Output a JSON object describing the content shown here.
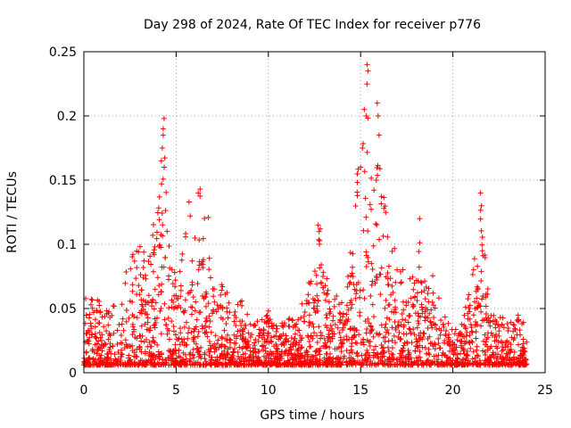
{
  "chart_data": {
    "type": "scatter",
    "title": "Day 298 of 2024, Rate Of TEC Index for receiver p776",
    "xlabel": "GPS time / hours",
    "ylabel": "ROTI / TECUs",
    "xlim": [
      0,
      25
    ],
    "ylim": [
      0,
      0.25
    ],
    "xticks": [
      0,
      5,
      10,
      15,
      20,
      25
    ],
    "yticks": [
      0,
      0.05,
      0.1,
      0.15,
      0.2,
      0.25
    ],
    "xtick_labels": [
      "0",
      "5",
      "10",
      "15",
      "20",
      "25"
    ],
    "ytick_labels": [
      "0",
      "0.05",
      "0.1",
      "0.15",
      "0.2",
      "0.25"
    ],
    "grid": true,
    "marker": "plus",
    "color": "#ff0000",
    "series": [
      {
        "name": "ROTI",
        "envelope": [
          [
            0.0,
            0.072
          ],
          [
            0.5,
            0.055
          ],
          [
            1.0,
            0.06
          ],
          [
            1.5,
            0.058
          ],
          [
            2.0,
            0.07
          ],
          [
            2.5,
            0.09
          ],
          [
            3.0,
            0.1
          ],
          [
            3.5,
            0.11
          ],
          [
            4.0,
            0.13
          ],
          [
            4.3,
            0.2
          ],
          [
            4.6,
            0.1
          ],
          [
            5.0,
            0.08
          ],
          [
            5.5,
            0.12
          ],
          [
            6.0,
            0.13
          ],
          [
            6.3,
            0.14
          ],
          [
            6.8,
            0.12
          ],
          [
            7.0,
            0.09
          ],
          [
            7.5,
            0.07
          ],
          [
            8.0,
            0.065
          ],
          [
            8.5,
            0.06
          ],
          [
            9.0,
            0.045
          ],
          [
            9.5,
            0.04
          ],
          [
            10.0,
            0.05
          ],
          [
            10.5,
            0.04
          ],
          [
            11.0,
            0.045
          ],
          [
            11.5,
            0.04
          ],
          [
            12.0,
            0.065
          ],
          [
            12.5,
            0.08
          ],
          [
            12.8,
            0.115
          ],
          [
            13.2,
            0.07
          ],
          [
            13.6,
            0.065
          ],
          [
            14.0,
            0.055
          ],
          [
            14.5,
            0.1
          ],
          [
            15.0,
            0.2
          ],
          [
            15.3,
            0.24
          ],
          [
            15.6,
            0.15
          ],
          [
            16.0,
            0.21
          ],
          [
            16.4,
            0.12
          ],
          [
            17.0,
            0.09
          ],
          [
            17.5,
            0.08
          ],
          [
            18.0,
            0.085
          ],
          [
            18.3,
            0.12
          ],
          [
            18.6,
            0.08
          ],
          [
            19.0,
            0.075
          ],
          [
            19.5,
            0.045
          ],
          [
            20.0,
            0.035
          ],
          [
            20.5,
            0.04
          ],
          [
            21.0,
            0.07
          ],
          [
            21.5,
            0.14
          ],
          [
            21.8,
            0.08
          ],
          [
            22.0,
            0.05
          ],
          [
            22.5,
            0.045
          ],
          [
            23.0,
            0.04
          ],
          [
            23.5,
            0.05
          ],
          [
            24.0,
            0.035
          ]
        ],
        "peaks": [
          [
            4.2,
            0.165
          ],
          [
            4.25,
            0.175
          ],
          [
            4.3,
            0.185
          ],
          [
            4.35,
            0.198
          ],
          [
            4.3,
            0.19
          ],
          [
            15.0,
            0.16
          ],
          [
            15.1,
            0.175
          ],
          [
            15.2,
            0.205
          ],
          [
            15.35,
            0.24
          ],
          [
            15.4,
            0.235
          ],
          [
            15.3,
            0.2
          ],
          [
            15.9,
            0.21
          ],
          [
            15.95,
            0.2
          ],
          [
            16.0,
            0.185
          ],
          [
            15.85,
            0.15
          ],
          [
            21.5,
            0.14
          ],
          [
            21.55,
            0.13
          ],
          [
            21.6,
            0.095
          ],
          [
            12.7,
            0.115
          ],
          [
            12.75,
            0.11
          ],
          [
            6.3,
            0.143
          ],
          [
            6.2,
            0.14
          ],
          [
            5.7,
            0.133
          ],
          [
            18.2,
            0.12
          ]
        ]
      }
    ]
  }
}
